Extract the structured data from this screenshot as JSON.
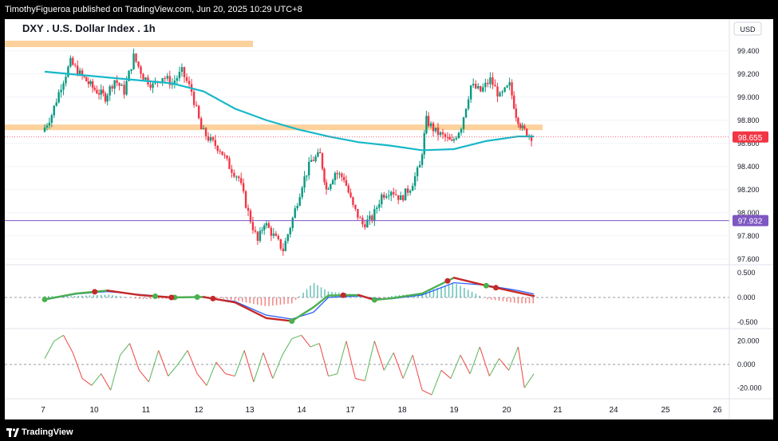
{
  "header": {
    "publisher": "TimothyFigueroa published on TradingView.com, Jun 20, 2025 10:29 UTC+8"
  },
  "footer": {
    "brand": "TradingView"
  },
  "chart": {
    "title": "DXY . U.S. Dollar Index . 1h",
    "currency": "USD",
    "current_price": "98.655",
    "marker_price": "97.932",
    "colors": {
      "up": "#089981",
      "down": "#f23645",
      "ma": "#17b8c8",
      "zone": "#fcd19c",
      "current": "#f23645",
      "marker": "#7e57c2",
      "signal_up": "#4caf50",
      "signal_down": "#c62828",
      "fast": "#2962ff"
    }
  },
  "chart_data": [
    {
      "type": "candlestick",
      "title": "DXY . U.S. Dollar Index . 1h",
      "x_ticks": [
        "7",
        "10",
        "11",
        "12",
        "13",
        "14",
        "17",
        "18",
        "19",
        "20",
        "21",
        "24",
        "25",
        "26"
      ],
      "y_ticks": [
        "99.400",
        "99.200",
        "99.000",
        "98.800",
        "98.600",
        "98.400",
        "98.200",
        "98.000",
        "97.800",
        "97.600"
      ],
      "ylim": [
        97.55,
        99.55
      ],
      "current_price": 98.655,
      "horizontal_line": 97.932,
      "resistance_zones": [
        {
          "level": 99.46,
          "x_end": "10.6"
        },
        {
          "level": 98.735,
          "x_end": "20.6"
        }
      ],
      "ohlc_path": [
        [
          0,
          98.7
        ],
        [
          0.3,
          98.85
        ],
        [
          0.6,
          99.1
        ],
        [
          0.9,
          99.3
        ],
        [
          1.2,
          99.2
        ],
        [
          1.6,
          99.08
        ],
        [
          2.0,
          99.0
        ],
        [
          2.3,
          99.15
        ],
        [
          2.6,
          99.05
        ],
        [
          2.9,
          99.35
        ],
        [
          3.2,
          99.18
        ],
        [
          3.5,
          99.1
        ],
        [
          3.8,
          99.18
        ],
        [
          4.1,
          99.12
        ],
        [
          4.4,
          99.22
        ],
        [
          4.7,
          99.05
        ],
        [
          5.0,
          98.72
        ],
        [
          5.3,
          98.62
        ],
        [
          5.6,
          98.55
        ],
        [
          5.9,
          98.4
        ],
        [
          6.2,
          98.3
        ],
        [
          6.5,
          98.0
        ],
        [
          6.8,
          97.75
        ],
        [
          7.0,
          97.92
        ],
        [
          7.3,
          97.8
        ],
        [
          7.6,
          97.68
        ],
        [
          7.9,
          97.95
        ],
        [
          8.2,
          98.25
        ],
        [
          8.5,
          98.45
        ],
        [
          8.8,
          98.5
        ],
        [
          9.0,
          98.2
        ],
        [
          9.3,
          98.35
        ],
        [
          9.6,
          98.3
        ],
        [
          9.9,
          98.05
        ],
        [
          10.2,
          97.9
        ],
        [
          10.5,
          97.95
        ],
        [
          10.8,
          98.15
        ],
        [
          11.1,
          98.2
        ],
        [
          11.4,
          98.12
        ],
        [
          11.7,
          98.22
        ],
        [
          12.0,
          98.4
        ],
        [
          12.2,
          98.8
        ],
        [
          12.5,
          98.7
        ],
        [
          12.8,
          98.65
        ],
        [
          13.0,
          98.6
        ],
        [
          13.3,
          98.75
        ],
        [
          13.6,
          99.1
        ],
        [
          13.9,
          99.05
        ],
        [
          14.2,
          99.15
        ],
        [
          14.5,
          99.0
        ],
        [
          14.8,
          99.1
        ],
        [
          15.0,
          98.85
        ],
        [
          15.2,
          98.72
        ],
        [
          15.5,
          98.66
        ]
      ],
      "moving_average": [
        [
          0,
          99.22
        ],
        [
          2,
          99.17
        ],
        [
          4,
          99.12
        ],
        [
          5,
          99.05
        ],
        [
          6,
          98.9
        ],
        [
          7,
          98.8
        ],
        [
          8,
          98.72
        ],
        [
          9,
          98.66
        ],
        [
          10,
          98.61
        ],
        [
          11,
          98.58
        ],
        [
          12,
          98.54
        ],
        [
          13,
          98.55
        ],
        [
          14,
          98.62
        ],
        [
          15,
          98.66
        ],
        [
          15.5,
          98.66
        ]
      ]
    },
    {
      "type": "line",
      "title": "",
      "y_ticks": [
        "0.500",
        "0.000",
        "-0.500"
      ],
      "ylim": [
        -0.6,
        0.6
      ],
      "series": [
        {
          "values": [
            [
              0,
              -0.04
            ],
            [
              1,
              0.08
            ],
            [
              2,
              0.14
            ],
            [
              3,
              0.05
            ],
            [
              4,
              0.0
            ],
            [
              5,
              0.01
            ],
            [
              6,
              -0.1
            ],
            [
              7,
              -0.42
            ],
            [
              7.8,
              -0.48
            ],
            [
              8.5,
              -0.2
            ],
            [
              9,
              0.04
            ],
            [
              10,
              0.05
            ],
            [
              10.5,
              -0.05
            ],
            [
              11,
              -0.02
            ],
            [
              12,
              0.08
            ],
            [
              13,
              0.4
            ],
            [
              14,
              0.24
            ],
            [
              15,
              0.1
            ],
            [
              15.5,
              0.03
            ]
          ]
        },
        {
          "values": [
            [
              0,
              -0.05
            ],
            [
              1,
              0.07
            ],
            [
              2,
              0.12
            ],
            [
              3,
              0.06
            ],
            [
              4,
              0.01
            ],
            [
              5,
              0.0
            ],
            [
              6,
              -0.08
            ],
            [
              7,
              -0.36
            ],
            [
              7.8,
              -0.44
            ],
            [
              8.5,
              -0.3
            ],
            [
              9,
              0.0
            ],
            [
              10,
              0.03
            ],
            [
              10.5,
              -0.02
            ],
            [
              11,
              -0.03
            ],
            [
              12,
              0.05
            ],
            [
              13,
              0.3
            ],
            [
              14,
              0.25
            ],
            [
              15,
              0.14
            ],
            [
              15.5,
              0.07
            ]
          ]
        }
      ],
      "signals_up": [
        0,
        3.5,
        4.1,
        4.8,
        7.8,
        14,
        10.5
      ],
      "signals_down": [
        1.6,
        4.0,
        5.3,
        9.5,
        12.8,
        14.3
      ]
    },
    {
      "type": "line",
      "title": "",
      "y_ticks": [
        "20.000",
        "0.000",
        "-20.000"
      ],
      "ylim": [
        -28,
        28
      ],
      "series": [
        {
          "values": [
            [
              0,
              5
            ],
            [
              0.3,
              20
            ],
            [
              0.6,
              25
            ],
            [
              0.9,
              10
            ],
            [
              1.2,
              -12
            ],
            [
              1.5,
              -18
            ],
            [
              1.8,
              -8
            ],
            [
              2.1,
              -22
            ],
            [
              2.4,
              8
            ],
            [
              2.7,
              18
            ],
            [
              3.0,
              -5
            ],
            [
              3.3,
              -15
            ],
            [
              3.6,
              12
            ],
            [
              3.9,
              -10
            ],
            [
              4.2,
              0
            ],
            [
              4.5,
              12
            ],
            [
              4.8,
              -8
            ],
            [
              5.1,
              -18
            ],
            [
              5.4,
              2
            ],
            [
              5.7,
              -8
            ],
            [
              6.0,
              -10
            ],
            [
              6.3,
              12
            ],
            [
              6.6,
              -15
            ],
            [
              6.9,
              10
            ],
            [
              7.2,
              -12
            ],
            [
              7.5,
              8
            ],
            [
              7.8,
              22
            ],
            [
              8.1,
              25
            ],
            [
              8.4,
              15
            ],
            [
              8.7,
              18
            ],
            [
              9.0,
              -10
            ],
            [
              9.3,
              -8
            ],
            [
              9.6,
              20
            ],
            [
              9.9,
              -12
            ],
            [
              10.2,
              -14
            ],
            [
              10.5,
              20
            ],
            [
              10.8,
              -5
            ],
            [
              11.1,
              10
            ],
            [
              11.4,
              -12
            ],
            [
              11.7,
              8
            ],
            [
              12.0,
              -22
            ],
            [
              12.3,
              -26
            ],
            [
              12.6,
              -5
            ],
            [
              12.9,
              -12
            ],
            [
              13.2,
              8
            ],
            [
              13.5,
              -8
            ],
            [
              13.8,
              15
            ],
            [
              14.1,
              -10
            ],
            [
              14.4,
              5
            ],
            [
              14.7,
              -5
            ],
            [
              15.0,
              15
            ],
            [
              15.2,
              -20
            ],
            [
              15.5,
              -8
            ]
          ]
        }
      ]
    }
  ]
}
